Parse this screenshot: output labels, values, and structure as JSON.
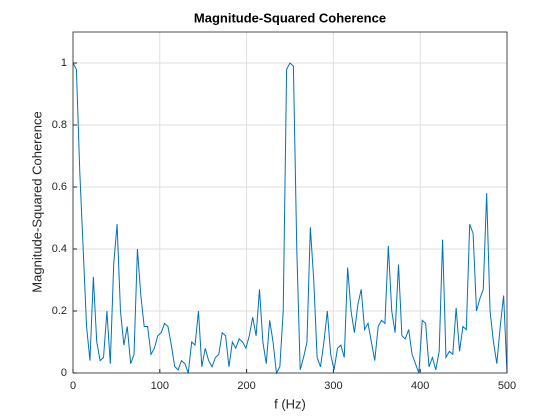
{
  "chart_data": {
    "type": "line",
    "title": "Magnitude-Squared Coherence",
    "x_label": "f (Hz)",
    "y_label": "Magnitude-Squared Coherence",
    "x": [
      0,
      3.90625,
      7.8125,
      11.71875,
      15.625,
      19.53125,
      23.4375,
      27.34375,
      31.25,
      35.15625,
      39.0625,
      42.96875,
      46.875,
      50.78125,
      54.6875,
      58.59375,
      62.5,
      66.40625,
      70.3125,
      74.21875,
      78.125,
      82.03125,
      85.9375,
      89.84375,
      93.75,
      97.65625,
      101.5625,
      105.46875,
      109.375,
      113.28125,
      117.1875,
      121.09375,
      125,
      128.90625,
      132.8125,
      136.71875,
      140.625,
      144.53125,
      148.4375,
      152.34375,
      156.25,
      160.15625,
      164.0625,
      167.96875,
      171.875,
      175.78125,
      179.6875,
      183.59375,
      187.5,
      191.40625,
      195.3125,
      199.21875,
      203.125,
      207.03125,
      210.9375,
      214.84375,
      218.75,
      222.65625,
      226.5625,
      230.46875,
      234.375,
      238.28125,
      242.1875,
      246.09375,
      250,
      253.90625,
      257.8125,
      261.71875,
      265.625,
      269.53125,
      273.4375,
      277.34375,
      281.25,
      285.15625,
      289.0625,
      292.96875,
      296.875,
      300.78125,
      304.6875,
      308.59375,
      312.5,
      316.40625,
      320.3125,
      324.21875,
      328.125,
      332.03125,
      335.9375,
      339.84375,
      343.75,
      347.65625,
      351.5625,
      355.46875,
      359.375,
      363.28125,
      367.1875,
      371.09375,
      375,
      378.90625,
      382.8125,
      386.71875,
      390.625,
      394.53125,
      398.4375,
      402.34375,
      406.25,
      410.15625,
      414.0625,
      417.96875,
      421.875,
      425.78125,
      429.6875,
      433.59375,
      437.5,
      441.40625,
      445.3125,
      449.21875,
      453.125,
      457.03125,
      460.9375,
      464.84375,
      468.75,
      472.65625,
      476.5625,
      480.46875,
      484.375,
      488.28125,
      492.1875,
      496.09375,
      500
    ],
    "series": [
      {
        "color": "#0072bd",
        "values": [
          1.0,
          0.98,
          0.65,
          0.4,
          0.15,
          0.04,
          0.31,
          0.1,
          0.04,
          0.05,
          0.2,
          0.03,
          0.35,
          0.48,
          0.2,
          0.09,
          0.15,
          0.03,
          0.06,
          0.4,
          0.25,
          0.15,
          0.15,
          0.06,
          0.08,
          0.12,
          0.13,
          0.16,
          0.15,
          0.09,
          0.02,
          0.01,
          0.04,
          0.03,
          0.0,
          0.1,
          0.09,
          0.2,
          0.02,
          0.08,
          0.04,
          0.02,
          0.05,
          0.06,
          0.13,
          0.12,
          0.02,
          0.1,
          0.08,
          0.11,
          0.1,
          0.08,
          0.12,
          0.18,
          0.12,
          0.27,
          0.1,
          0.03,
          0.17,
          0.1,
          0.0,
          0.02,
          0.2,
          0.98,
          1.0,
          0.99,
          0.4,
          0.01,
          0.05,
          0.1,
          0.47,
          0.3,
          0.05,
          0.02,
          0.1,
          0.2,
          0.06,
          0.01,
          0.08,
          0.09,
          0.05,
          0.34,
          0.2,
          0.13,
          0.22,
          0.27,
          0.14,
          0.16,
          0.1,
          0.04,
          0.15,
          0.17,
          0.16,
          0.41,
          0.2,
          0.13,
          0.35,
          0.12,
          0.11,
          0.14,
          0.06,
          0.03,
          0.0,
          0.17,
          0.16,
          0.02,
          0.05,
          0.01,
          0.07,
          0.43,
          0.05,
          0.07,
          0.06,
          0.21,
          0.07,
          0.15,
          0.14,
          0.48,
          0.45,
          0.2,
          0.24,
          0.27,
          0.58,
          0.2,
          0.1,
          0.03,
          0.15,
          0.25,
          0.0
        ]
      }
    ],
    "xlim": [
      0,
      500
    ],
    "xticks": [
      0,
      100,
      200,
      300,
      400,
      500
    ],
    "ylim": [
      0,
      1.1
    ],
    "yticks": [
      0,
      0.2,
      0.4,
      0.6,
      0.8,
      1
    ],
    "grid": true
  }
}
